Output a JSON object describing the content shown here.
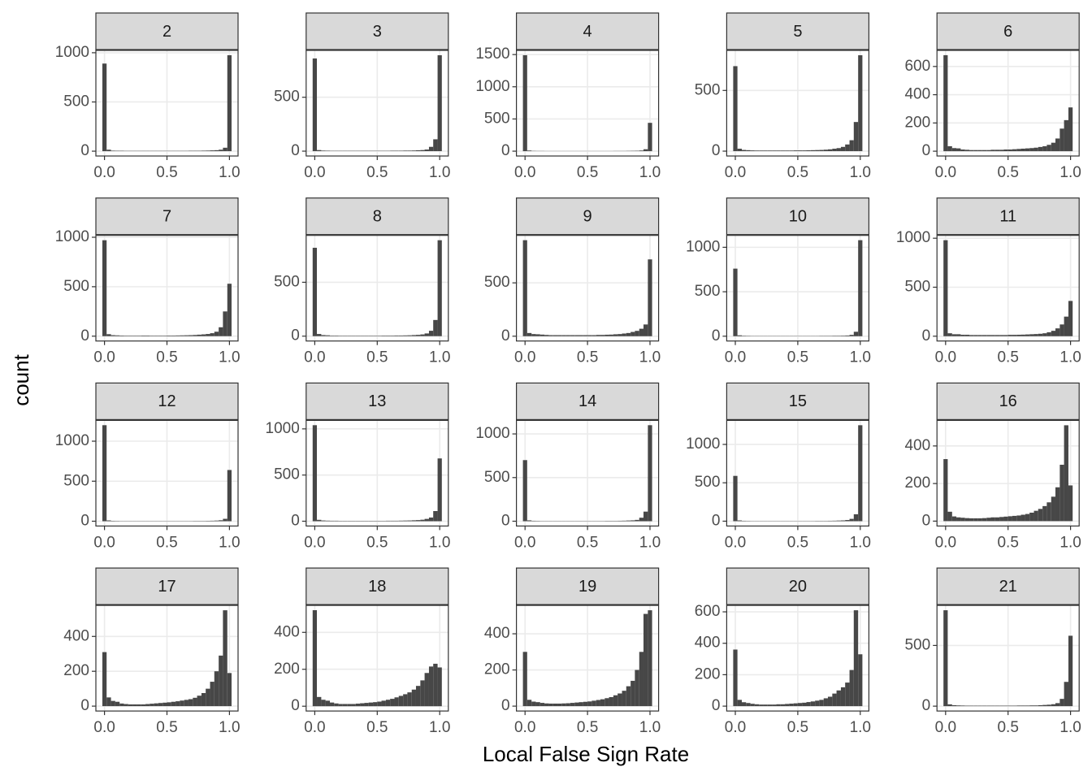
{
  "xlabel": "Local False Sign Rate",
  "ylabel": "count",
  "color": "#474747",
  "bins": [
    -0.017,
    0.017,
    0.052,
    0.086,
    0.121,
    0.155,
    0.19,
    0.224,
    0.259,
    0.293,
    0.328,
    0.362,
    0.397,
    0.431,
    0.466,
    0.5,
    0.534,
    0.569,
    0.603,
    0.638,
    0.672,
    0.707,
    0.741,
    0.776,
    0.81,
    0.845,
    0.879,
    0.914,
    0.948,
    0.983,
    1.017
  ],
  "xlim": [
    -0.069,
    1.069
  ],
  "xticks": [
    {
      "value": 0,
      "label": "0.0"
    },
    {
      "value": 0.5,
      "label": "0.5"
    },
    {
      "value": 1,
      "label": "1.0"
    }
  ],
  "grid": true,
  "chart_data": [
    {
      "type": "histogram",
      "title": "2",
      "values": [
        890,
        15,
        5,
        4,
        4,
        3,
        3,
        3,
        3,
        3,
        3,
        3,
        3,
        3,
        3,
        3,
        3,
        3,
        3,
        3,
        4,
        4,
        4,
        5,
        6,
        8,
        10,
        15,
        35,
        975
      ],
      "ylim": [
        -49,
        1024
      ],
      "yticks": [
        0,
        500,
        1000
      ]
    },
    {
      "type": "histogram",
      "title": "3",
      "values": [
        860,
        10,
        5,
        4,
        3,
        3,
        3,
        3,
        3,
        3,
        3,
        3,
        3,
        3,
        3,
        3,
        3,
        3,
        4,
        4,
        4,
        5,
        5,
        6,
        8,
        10,
        15,
        40,
        110,
        890
      ],
      "ylim": [
        -45,
        935
      ],
      "yticks": [
        0,
        500
      ]
    },
    {
      "type": "histogram",
      "title": "4",
      "values": [
        1490,
        10,
        4,
        3,
        3,
        2,
        2,
        2,
        2,
        2,
        2,
        2,
        2,
        2,
        2,
        2,
        2,
        2,
        2,
        2,
        2,
        3,
        3,
        3,
        4,
        5,
        6,
        10,
        30,
        440
      ],
      "ylim": [
        -75,
        1565
      ],
      "yticks": [
        0,
        500,
        1000,
        1500
      ]
    },
    {
      "type": "histogram",
      "title": "5",
      "values": [
        700,
        20,
        10,
        8,
        6,
        5,
        5,
        5,
        5,
        5,
        5,
        5,
        5,
        5,
        6,
        6,
        6,
        7,
        8,
        9,
        10,
        12,
        15,
        20,
        25,
        35,
        55,
        90,
        240,
        790
      ],
      "ylim": [
        -40,
        830
      ],
      "yticks": [
        0,
        500
      ]
    },
    {
      "type": "histogram",
      "title": "6",
      "values": [
        680,
        35,
        22,
        20,
        12,
        10,
        8,
        8,
        8,
        8,
        8,
        10,
        10,
        10,
        12,
        12,
        14,
        16,
        18,
        20,
        22,
        25,
        30,
        35,
        45,
        60,
        90,
        160,
        220,
        310
      ],
      "ylim": [
        -34,
        714
      ],
      "yticks": [
        0,
        200,
        400,
        600
      ]
    },
    {
      "type": "histogram",
      "title": "7",
      "values": [
        970,
        20,
        10,
        8,
        6,
        5,
        5,
        5,
        5,
        6,
        6,
        5,
        5,
        5,
        5,
        6,
        6,
        7,
        8,
        9,
        10,
        12,
        15,
        18,
        22,
        30,
        45,
        90,
        250,
        530
      ],
      "ylim": [
        -49,
        1019
      ],
      "yticks": [
        0,
        500,
        1000
      ]
    },
    {
      "type": "histogram",
      "title": "8",
      "values": [
        820,
        20,
        10,
        8,
        5,
        5,
        4,
        4,
        4,
        4,
        4,
        4,
        4,
        4,
        4,
        4,
        5,
        5,
        5,
        6,
        6,
        7,
        8,
        10,
        12,
        16,
        25,
        50,
        150,
        890
      ],
      "ylim": [
        -45,
        935
      ],
      "yticks": [
        0,
        500
      ]
    },
    {
      "type": "histogram",
      "title": "9",
      "values": [
        900,
        30,
        20,
        18,
        15,
        12,
        10,
        10,
        10,
        10,
        10,
        10,
        10,
        10,
        10,
        10,
        10,
        12,
        12,
        14,
        15,
        18,
        20,
        25,
        30,
        40,
        50,
        70,
        110,
        720
      ],
      "ylim": [
        -45,
        945
      ],
      "yticks": [
        0,
        500
      ]
    },
    {
      "type": "histogram",
      "title": "10",
      "values": [
        760,
        10,
        5,
        4,
        3,
        3,
        3,
        3,
        3,
        3,
        3,
        3,
        3,
        3,
        3,
        3,
        3,
        3,
        3,
        3,
        4,
        4,
        4,
        5,
        5,
        6,
        8,
        15,
        50,
        1080
      ],
      "ylim": [
        -54,
        1134
      ],
      "yticks": [
        0,
        500,
        1000
      ]
    },
    {
      "type": "histogram",
      "title": "11",
      "values": [
        980,
        30,
        20,
        20,
        15,
        15,
        12,
        12,
        12,
        12,
        12,
        12,
        12,
        12,
        12,
        14,
        14,
        15,
        16,
        18,
        20,
        22,
        25,
        30,
        40,
        55,
        80,
        120,
        200,
        360
      ],
      "ylim": [
        -49,
        1029
      ],
      "yticks": [
        0,
        500,
        1000
      ]
    },
    {
      "type": "histogram",
      "title": "12",
      "values": [
        1200,
        10,
        5,
        4,
        3,
        3,
        3,
        3,
        3,
        3,
        3,
        3,
        3,
        3,
        3,
        3,
        3,
        3,
        3,
        3,
        3,
        4,
        4,
        4,
        5,
        6,
        8,
        12,
        30,
        640
      ],
      "ylim": [
        -60,
        1260
      ],
      "yticks": [
        0,
        500,
        1000
      ]
    },
    {
      "type": "histogram",
      "title": "13",
      "values": [
        1040,
        15,
        8,
        6,
        5,
        5,
        4,
        4,
        4,
        4,
        4,
        4,
        4,
        4,
        4,
        4,
        4,
        5,
        5,
        5,
        6,
        7,
        8,
        10,
        12,
        16,
        25,
        40,
        110,
        680
      ],
      "ylim": [
        -52,
        1092
      ],
      "yticks": [
        0,
        500,
        1000
      ]
    },
    {
      "type": "histogram",
      "title": "14",
      "values": [
        700,
        10,
        5,
        4,
        3,
        3,
        3,
        3,
        3,
        3,
        3,
        3,
        3,
        3,
        3,
        3,
        3,
        3,
        3,
        4,
        4,
        4,
        5,
        6,
        8,
        10,
        15,
        40,
        110,
        1100
      ],
      "ylim": [
        -55,
        1155
      ],
      "yticks": [
        0,
        500,
        1000
      ]
    },
    {
      "type": "histogram",
      "title": "15",
      "values": [
        590,
        10,
        5,
        4,
        3,
        3,
        3,
        3,
        3,
        3,
        3,
        3,
        3,
        3,
        3,
        3,
        3,
        3,
        3,
        4,
        4,
        4,
        5,
        6,
        8,
        10,
        15,
        30,
        90,
        1250
      ],
      "ylim": [
        -63,
        1313
      ],
      "yticks": [
        0,
        500,
        1000
      ]
    },
    {
      "type": "histogram",
      "title": "16",
      "values": [
        330,
        50,
        25,
        20,
        18,
        16,
        15,
        15,
        15,
        16,
        18,
        20,
        20,
        22,
        24,
        26,
        28,
        30,
        34,
        38,
        45,
        55,
        65,
        80,
        100,
        130,
        180,
        300,
        510,
        190
      ],
      "ylim": [
        -26,
        536
      ],
      "yticks": [
        0,
        200,
        400
      ]
    },
    {
      "type": "histogram",
      "title": "17",
      "values": [
        310,
        50,
        30,
        25,
        15,
        12,
        10,
        10,
        10,
        10,
        12,
        14,
        16,
        18,
        20,
        22,
        25,
        28,
        32,
        36,
        40,
        48,
        60,
        75,
        100,
        140,
        200,
        290,
        550,
        190
      ],
      "ylim": [
        -28,
        578
      ],
      "yticks": [
        0,
        200,
        400
      ]
    },
    {
      "type": "histogram",
      "title": "18",
      "values": [
        520,
        50,
        35,
        30,
        20,
        15,
        12,
        12,
        12,
        12,
        14,
        16,
        18,
        20,
        22,
        25,
        30,
        35,
        40,
        48,
        56,
        65,
        75,
        90,
        110,
        140,
        180,
        215,
        230,
        210
      ],
      "ylim": [
        -26,
        546
      ],
      "yticks": [
        0,
        200,
        400
      ]
    },
    {
      "type": "histogram",
      "title": "19",
      "values": [
        300,
        35,
        25,
        22,
        18,
        15,
        14,
        14,
        14,
        15,
        16,
        18,
        20,
        22,
        24,
        26,
        30,
        34,
        38,
        44,
        50,
        60,
        70,
        85,
        110,
        140,
        200,
        300,
        510,
        530
      ],
      "ylim": [
        -27,
        557
      ],
      "yticks": [
        0,
        200,
        400
      ]
    },
    {
      "type": "histogram",
      "title": "20",
      "values": [
        360,
        40,
        25,
        20,
        15,
        12,
        10,
        10,
        10,
        10,
        12,
        12,
        14,
        16,
        18,
        20,
        22,
        26,
        30,
        35,
        40,
        50,
        60,
        80,
        100,
        120,
        150,
        230,
        610,
        330
      ],
      "ylim": [
        -31,
        641
      ],
      "yticks": [
        0,
        200,
        400,
        600
      ]
    },
    {
      "type": "histogram",
      "title": "21",
      "values": [
        790,
        15,
        8,
        6,
        5,
        4,
        4,
        4,
        4,
        4,
        4,
        4,
        4,
        4,
        4,
        4,
        4,
        5,
        5,
        5,
        6,
        6,
        8,
        10,
        12,
        16,
        25,
        60,
        200,
        580
      ],
      "ylim": [
        -40,
        830
      ],
      "yticks": [
        0,
        500
      ]
    }
  ]
}
